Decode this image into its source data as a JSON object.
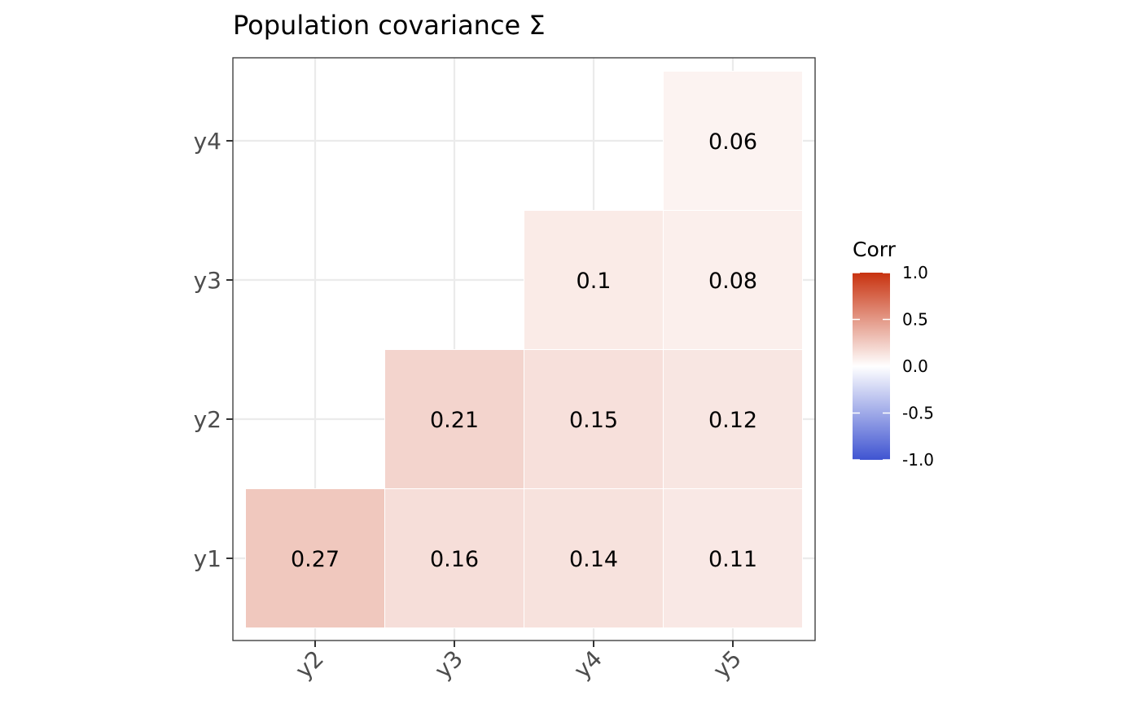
{
  "chart_data": {
    "type": "heatmap",
    "title": "Population covariance Σ",
    "x_categories": [
      "y2",
      "y3",
      "y4",
      "y5"
    ],
    "y_categories": [
      "y1",
      "y2",
      "y3",
      "y4"
    ],
    "cells": [
      {
        "x": "y2",
        "y": "y1",
        "value": 0.27,
        "label": "0.27"
      },
      {
        "x": "y3",
        "y": "y1",
        "value": 0.16,
        "label": "0.16"
      },
      {
        "x": "y4",
        "y": "y1",
        "value": 0.14,
        "label": "0.14"
      },
      {
        "x": "y5",
        "y": "y1",
        "value": 0.11,
        "label": "0.11"
      },
      {
        "x": "y3",
        "y": "y2",
        "value": 0.21,
        "label": "0.21"
      },
      {
        "x": "y4",
        "y": "y2",
        "value": 0.15,
        "label": "0.15"
      },
      {
        "x": "y5",
        "y": "y2",
        "value": 0.12,
        "label": "0.12"
      },
      {
        "x": "y4",
        "y": "y3",
        "value": 0.1,
        "label": "0.1"
      },
      {
        "x": "y5",
        "y": "y3",
        "value": 0.08,
        "label": "0.08"
      },
      {
        "x": "y5",
        "y": "y4",
        "value": 0.06,
        "label": "0.06"
      }
    ],
    "legend": {
      "title": "Corr",
      "placement": "right",
      "range": [
        -1,
        1
      ],
      "ticks": [
        1.0,
        0.5,
        0.0,
        -0.5,
        -1.0
      ],
      "tick_labels": [
        "1.0",
        "0.5",
        "0.0",
        "-0.5",
        "-1.0"
      ],
      "colors": {
        "low": "#3f54d1",
        "mid": "#ffffff",
        "high": "#c8320f"
      }
    },
    "grid": true,
    "x_tick_rotation": "45 degrees"
  }
}
